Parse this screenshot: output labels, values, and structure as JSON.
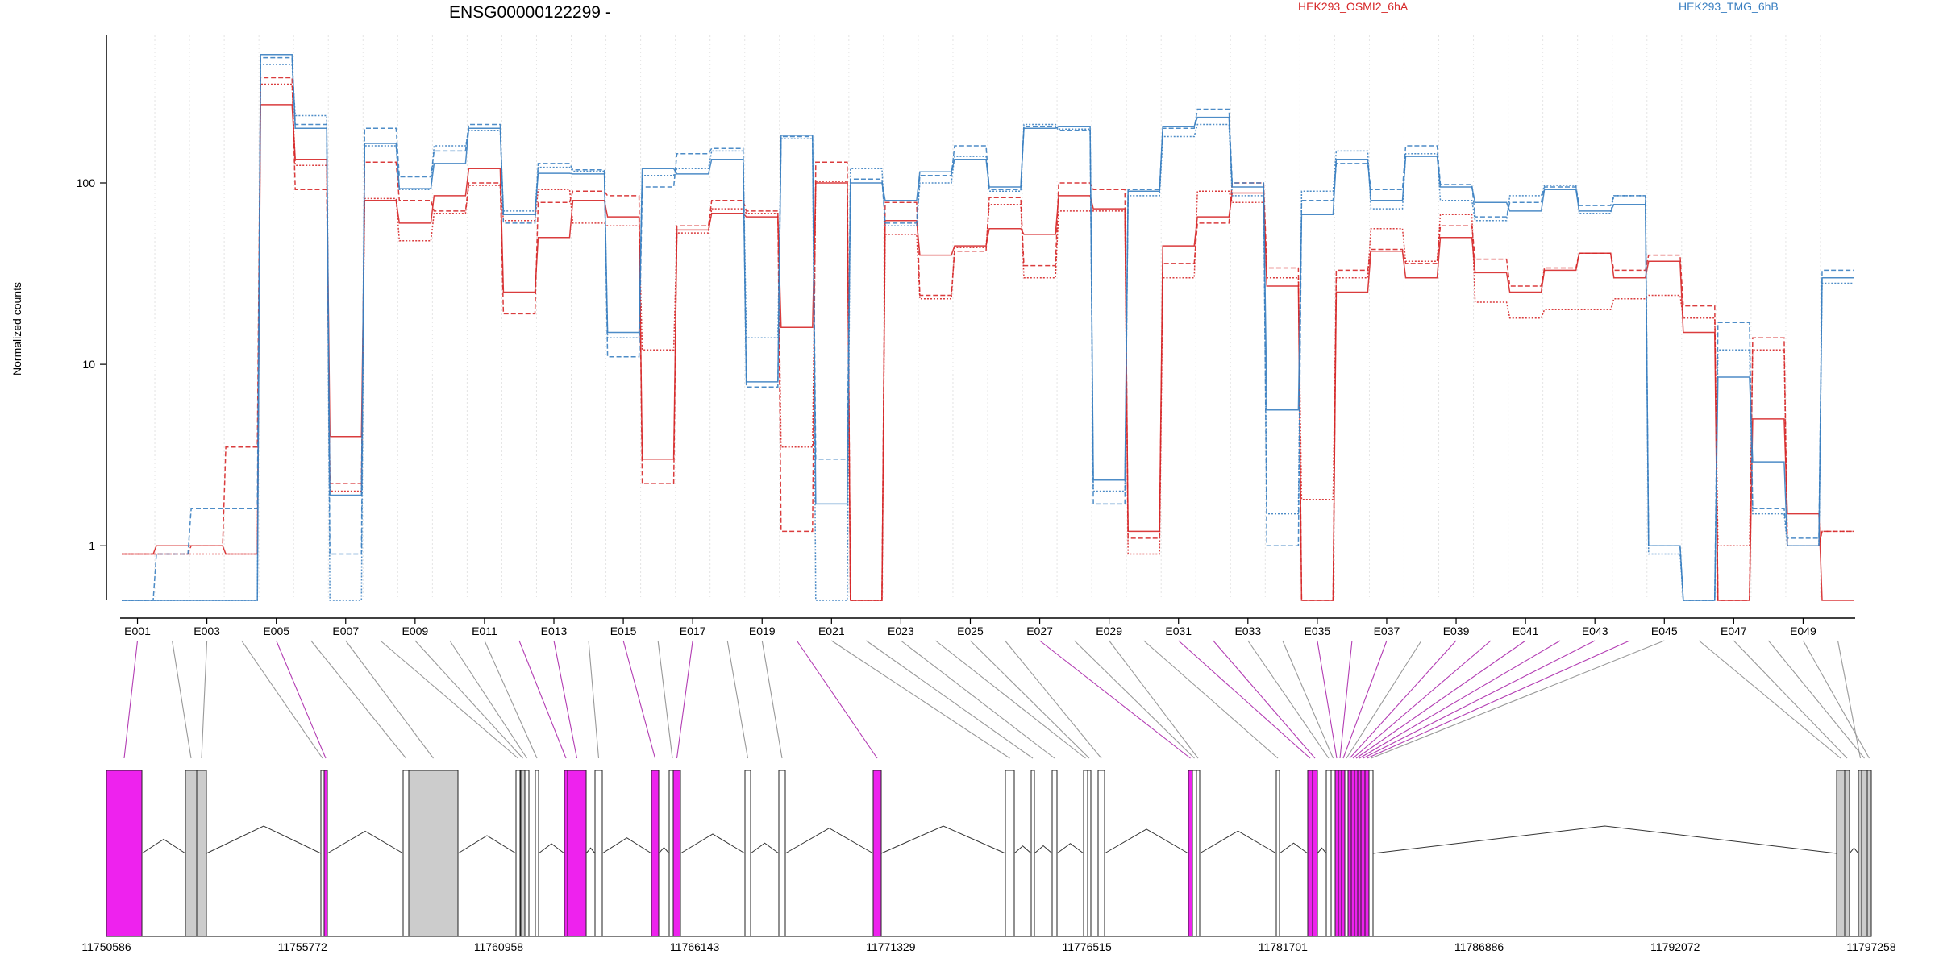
{
  "chart_data": {
    "type": "line",
    "title": "ENSG00000122299 -",
    "ylabel": "Normalized counts",
    "xlabel": "",
    "y_scale": "log",
    "ylim": [
      0.5,
      650
    ],
    "grid": "vertical dotted lines at exon boundaries",
    "legend": [
      {
        "name": "HEK293_OSMI2_6hA",
        "color": "#d62728",
        "placement": "top-center"
      },
      {
        "name": "HEK293_TMG_6hB",
        "color": "#3a7fc1",
        "placement": "top-right"
      }
    ],
    "y_ticks": [
      {
        "value": 1,
        "label": "1"
      },
      {
        "value": 10,
        "label": "10"
      },
      {
        "value": 100,
        "label": "100"
      }
    ],
    "x_tick_labels": [
      "E001",
      "E003",
      "E005",
      "E007",
      "E009",
      "E011",
      "E013",
      "E015",
      "E017",
      "E019",
      "E021",
      "E023",
      "E025",
      "E027",
      "E029",
      "E031",
      "E033",
      "E035",
      "E037",
      "E039",
      "E041",
      "E043",
      "E045",
      "E047",
      "E049"
    ],
    "n_exons": 50,
    "series": [
      {
        "name": "HEK293_OSMI2_6hA",
        "color": "#d62728",
        "style": "solid",
        "values": [
          0.9,
          1,
          1,
          0.9,
          270,
          135,
          4,
          80,
          60,
          85,
          120,
          25,
          50,
          80,
          65,
          3,
          55,
          68,
          65,
          16,
          100,
          0.5,
          62,
          40,
          45,
          56,
          52,
          85,
          72,
          1.2,
          45,
          65,
          88,
          27,
          0.5,
          25,
          42,
          30,
          50,
          32,
          25,
          33,
          41,
          30,
          37,
          15,
          0.5,
          5,
          1.5,
          0.5
        ]
      },
      {
        "name": "HEK293_OSMI2_6hA",
        "color": "#d62728",
        "style": "dashed",
        "values": [
          0.9,
          0.9,
          1,
          3.5,
          380,
          92,
          2.2,
          130,
          80,
          70,
          100,
          19,
          78,
          90,
          85,
          2.2,
          58,
          80,
          70,
          1.2,
          130,
          0.5,
          78,
          24,
          42,
          83,
          35,
          100,
          92,
          1.1,
          36,
          60,
          100,
          34,
          0.5,
          33,
          43,
          36,
          58,
          38,
          27,
          34,
          41,
          33,
          40,
          21,
          0.5,
          14,
          1,
          1.2
        ]
      },
      {
        "name": "HEK293_OSMI2_6hA",
        "color": "#d62728",
        "style": "dotted",
        "values": [
          0.9,
          0.9,
          0.9,
          0.9,
          350,
          125,
          2,
          82,
          48,
          68,
          97,
          62,
          92,
          60,
          58,
          12,
          53,
          72,
          68,
          3.5,
          102,
          0.5,
          52,
          23,
          44,
          76,
          30,
          70,
          70,
          0.9,
          30,
          90,
          78,
          30,
          1.8,
          30,
          56,
          37,
          67,
          22,
          18,
          20,
          20,
          23,
          24,
          18,
          1,
          12,
          1,
          1.2
        ]
      },
      {
        "name": "HEK293_TMG_6hB",
        "color": "#3a7fc1",
        "style": "solid",
        "values": [
          0.5,
          0.5,
          0.5,
          0.5,
          510,
          200,
          1.9,
          165,
          93,
          128,
          200,
          67,
          113,
          112,
          15,
          120,
          112,
          135,
          8,
          183,
          1.7,
          100,
          80,
          115,
          135,
          95,
          200,
          205,
          2.3,
          90,
          205,
          230,
          95,
          5.6,
          67,
          135,
          80,
          140,
          95,
          78,
          70,
          92,
          70,
          76,
          1,
          0.5,
          8.5,
          2.9,
          1,
          30
        ]
      },
      {
        "name": "HEK293_TMG_6hB",
        "color": "#3a7fc1",
        "style": "dashed",
        "values": [
          0.5,
          0.9,
          1.6,
          1.6,
          490,
          210,
          0.9,
          200,
          108,
          150,
          210,
          60,
          128,
          118,
          11,
          95,
          145,
          155,
          7.5,
          180,
          3,
          105,
          60,
          110,
          160,
          92,
          205,
          195,
          1.7,
          92,
          200,
          255,
          100,
          1,
          80,
          128,
          92,
          160,
          98,
          65,
          78,
          95,
          75,
          85,
          1,
          0.5,
          17,
          1.6,
          1.1,
          33
        ]
      },
      {
        "name": "HEK293_TMG_6hB",
        "color": "#3a7fc1",
        "style": "dotted",
        "values": [
          0.5,
          0.5,
          0.5,
          0.5,
          450,
          235,
          0.5,
          160,
          92,
          160,
          195,
          70,
          122,
          116,
          14,
          110,
          120,
          150,
          14,
          175,
          0.5,
          120,
          58,
          100,
          140,
          90,
          210,
          198,
          2,
          85,
          180,
          210,
          85,
          1.5,
          90,
          150,
          72,
          145,
          80,
          62,
          85,
          97,
          68,
          85,
          0.9,
          0.5,
          12,
          1.5,
          1,
          28
        ]
      }
    ],
    "gene_model": {
      "axis_tick_labels": [
        "11750586",
        "11755772",
        "11760958",
        "11766143",
        "11771329",
        "11776515",
        "11781701",
        "11786886",
        "11792072",
        "11797258"
      ],
      "legend_note": "magenta = significant exon, grey = tested exon, white = other",
      "colors": {
        "significant": "#ee22ee",
        "tested": "#cccccc",
        "other": "#ffffff"
      }
    }
  }
}
